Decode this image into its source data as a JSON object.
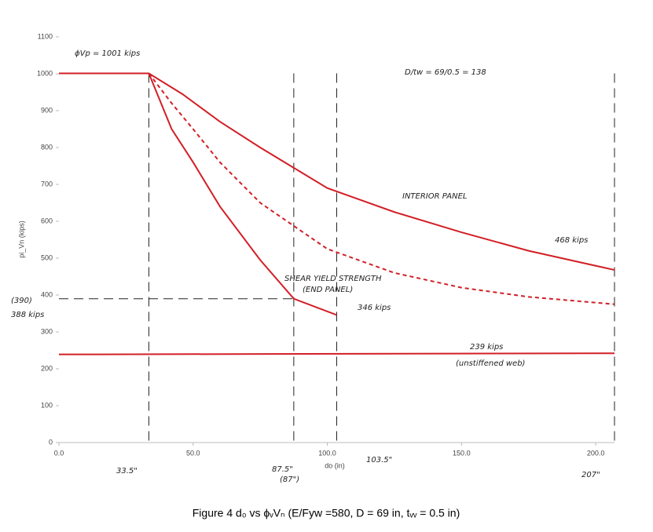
{
  "chart_data": {
    "type": "line",
    "caption": "Figure 4 d₀ vs ϕᵥVₙ (E/Fyw =580, D = 69 in, tᵥᵥ = 0.5 in)",
    "x_label": "do (in)",
    "y_label": "pi_Vn (kips)",
    "xlim": [
      0,
      207
    ],
    "ylim": [
      0,
      1100
    ],
    "xticks": [
      {
        "value": 0,
        "label": "0.0"
      },
      {
        "value": 50,
        "label": "50.0"
      },
      {
        "value": 100,
        "label": "100.0"
      },
      {
        "value": 150,
        "label": "150.0"
      },
      {
        "value": 200,
        "label": "200.0"
      }
    ],
    "yticks": [
      0,
      100,
      200,
      300,
      400,
      500,
      600,
      700,
      800,
      900,
      1000,
      1100
    ],
    "series": [
      {
        "color": "#d21f26",
        "dash": false,
        "x": [
          0,
          33.5,
          46,
          60,
          75,
          100,
          125,
          150,
          175,
          207
        ],
        "values": [
          1001,
          1001,
          945,
          870,
          800,
          690,
          625,
          570,
          520,
          468
        ]
      },
      {
        "color": "#d21f26",
        "dash": true,
        "x": [
          33.5,
          42,
          50,
          60,
          75,
          100,
          125,
          150,
          175,
          207
        ],
        "values": [
          1001,
          920,
          850,
          760,
          650,
          525,
          460,
          420,
          395,
          375
        ]
      },
      {
        "color": "#d21f26",
        "dash": false,
        "x": [
          33.5,
          42,
          50,
          60,
          75,
          87.5,
          103.5
        ],
        "values": [
          1001,
          850,
          760,
          640,
          495,
          390,
          346
        ]
      },
      {
        "color": "#d21f26",
        "dash": false,
        "x": [
          0,
          207
        ],
        "values": [
          239,
          242
        ]
      }
    ],
    "reference_lines": {
      "x": [
        33.5,
        87.5,
        103.5,
        207
      ],
      "y": [
        390
      ]
    },
    "annotations": [
      "ϕVp = 1001 kips",
      "D/tw = 69/0.5 = 138",
      "INTERIOR PANEL",
      "468 kips",
      "SHEAR YIELD STRENGTH",
      "(END PANEL)",
      "346 kips",
      "239 kips",
      "(unstiffened web)",
      "(390)",
      "388 kips",
      "33.5\"",
      "87.5\"",
      "(87\")",
      "103.5\"",
      "207\""
    ]
  }
}
